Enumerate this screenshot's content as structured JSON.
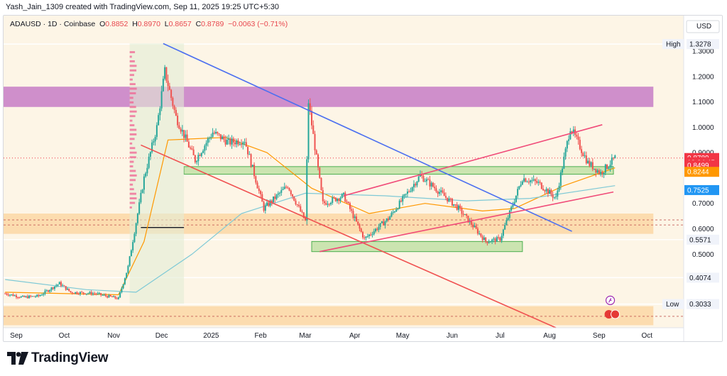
{
  "header": {
    "caption": "Yash_Jain_1309 created with TradingView.com, Sep 11, 2025 19:25 UTC+5:30"
  },
  "legend": {
    "symbol": "ADAUSD · 1D · Coinbase",
    "o_label": "O",
    "o_value": "0.8852",
    "h_label": "H",
    "h_value": "0.8970",
    "l_label": "L",
    "l_value": "0.8657",
    "c_label": "C",
    "c_value": "0.8789",
    "change": "−0.0063 (−0.71%)"
  },
  "brand": {
    "name": "TradingView"
  },
  "colors": {
    "bg": "#fdf5e6",
    "purple": "#c77dc6",
    "zone_orange": "#fbd7a4",
    "zone_green": "#b9dd9e",
    "blue_line": "#4c6ff0",
    "red_line": "#f05050",
    "pink_line": "#f04a78",
    "up": "#26a69a",
    "down": "#ef5350"
  },
  "chart_data": {
    "type": "candlestick",
    "title": "ADAUSD · 1D · Coinbase",
    "currency": "USD",
    "y_range": [
      0.21,
      1.44
    ],
    "x_range": [
      "2024-08-24",
      "2025-10-24"
    ],
    "x_ticks": [
      {
        "date": "2024-09-01",
        "label": "Sep"
      },
      {
        "date": "2024-10-01",
        "label": "Oct"
      },
      {
        "date": "2024-11-01",
        "label": "Nov"
      },
      {
        "date": "2024-12-01",
        "label": "Dec"
      },
      {
        "date": "2025-01-01",
        "label": "2025"
      },
      {
        "date": "2025-02-01",
        "label": "Feb"
      },
      {
        "date": "2025-03-01",
        "label": "Mar"
      },
      {
        "date": "2025-04-01",
        "label": "Apr"
      },
      {
        "date": "2025-05-01",
        "label": "May"
      },
      {
        "date": "2025-06-01",
        "label": "Jun"
      },
      {
        "date": "2025-07-01",
        "label": "Jul"
      },
      {
        "date": "2025-08-01",
        "label": "Aug"
      },
      {
        "date": "2025-09-01",
        "label": "Sep"
      },
      {
        "date": "2025-10-01",
        "label": "Oct"
      }
    ],
    "y_ticks": [
      "1.3000",
      "1.2000",
      "1.1000",
      "1.0000",
      "0.9000",
      "0.7000",
      "0.6000",
      "0.5000"
    ],
    "price_labels": [
      {
        "price": 0.8789,
        "label": "0.8789",
        "color": "#f23645"
      },
      {
        "price": 0.862,
        "label": "10:04:45",
        "color": "#f23645"
      },
      {
        "price": 0.8499,
        "label": "0.8499",
        "color": "#f23645"
      },
      {
        "price": 0.8244,
        "label": "0.8244",
        "color": "#ff9800"
      },
      {
        "price": 0.7525,
        "label": "0.7525",
        "color": "#2196f3"
      }
    ],
    "level_labels": [
      {
        "price": 1.3278,
        "value": "1.3278",
        "tag": "High"
      },
      {
        "price": 0.5571,
        "value": "0.5571",
        "tag": ""
      },
      {
        "price": 0.4074,
        "value": "0.4074",
        "tag": ""
      },
      {
        "price": 0.3033,
        "value": "0.3033",
        "tag": "Low"
      }
    ],
    "zones": [
      {
        "name": "resistance-zone",
        "from": "2024-08-24",
        "to": "2025-10-05",
        "low": 1.08,
        "high": 1.16,
        "color": "#c77dc6"
      },
      {
        "name": "support-zone-upper",
        "from": "2024-08-24",
        "to": "2025-10-05",
        "low": 0.58,
        "high": 0.66,
        "color": "#fbd7a4"
      },
      {
        "name": "support-zone-lower",
        "from": "2024-08-24",
        "to": "2025-10-05",
        "low": 0.22,
        "high": 0.295,
        "color": "#fbd7a4"
      },
      {
        "name": "demand-box-neckline",
        "from": "2024-12-15",
        "to": "2025-09-10",
        "low": 0.815,
        "high": 0.845,
        "color": "#b9dd9e"
      },
      {
        "name": "demand-box-bottom",
        "from": "2025-03-05",
        "to": "2025-07-15",
        "low": 0.51,
        "high": 0.55,
        "color": "#b9dd9e"
      }
    ],
    "trendlines": [
      {
        "name": "blue-downtrend-line",
        "p1": [
          "2024-12-02",
          1.33
        ],
        "p2": [
          "2025-08-15",
          0.59
        ],
        "color": "#4c6ff0"
      },
      {
        "name": "red-descending-support",
        "p1": [
          "2024-11-18",
          0.93
        ],
        "p2": [
          "2025-08-05",
          0.21
        ],
        "color": "#f05050"
      },
      {
        "name": "channel-upper-line",
        "p1": [
          "2025-03-25",
          0.73
        ],
        "p2": [
          "2025-09-03",
          1.01
        ],
        "color": "#f04a78"
      },
      {
        "name": "channel-lower-line",
        "p1": [
          "2025-03-10",
          0.51
        ],
        "p2": [
          "2025-09-10",
          0.745
        ],
        "color": "#f04a78"
      }
    ],
    "price_path": [
      [
        "2024-08-25",
        0.345
      ],
      [
        "2024-09-05",
        0.33
      ],
      [
        "2024-09-15",
        0.335
      ],
      [
        "2024-09-28",
        0.385
      ],
      [
        "2024-10-05",
        0.35
      ],
      [
        "2024-10-20",
        0.345
      ],
      [
        "2024-11-04",
        0.325
      ],
      [
        "2024-11-10",
        0.45
      ],
      [
        "2024-11-20",
        0.8
      ],
      [
        "2024-11-28",
        1.0
      ],
      [
        "2024-12-03",
        1.22
      ],
      [
        "2024-12-10",
        1.04
      ],
      [
        "2024-12-22",
        0.87
      ],
      [
        "2025-01-02",
        0.98
      ],
      [
        "2025-01-12",
        0.94
      ],
      [
        "2025-01-22",
        0.95
      ],
      [
        "2025-02-03",
        0.68
      ],
      [
        "2025-02-18",
        0.77
      ],
      [
        "2025-03-01",
        0.63
      ],
      [
        "2025-03-03",
        1.1
      ],
      [
        "2025-03-12",
        0.7
      ],
      [
        "2025-03-25",
        0.73
      ],
      [
        "2025-04-07",
        0.56
      ],
      [
        "2025-04-22",
        0.64
      ],
      [
        "2025-05-12",
        0.81
      ],
      [
        "2025-05-25",
        0.74
      ],
      [
        "2025-06-05",
        0.68
      ],
      [
        "2025-06-22",
        0.55
      ],
      [
        "2025-07-01",
        0.56
      ],
      [
        "2025-07-15",
        0.8
      ],
      [
        "2025-07-25",
        0.78
      ],
      [
        "2025-08-05",
        0.72
      ],
      [
        "2025-08-14",
        1.0
      ],
      [
        "2025-08-25",
        0.86
      ],
      [
        "2025-09-02",
        0.82
      ],
      [
        "2025-09-11",
        0.879
      ]
    ],
    "series": [
      {
        "name": "fast-ma",
        "color": "#ff9800",
        "path": [
          [
            "2024-08-25",
            0.35
          ],
          [
            "2024-11-04",
            0.34
          ],
          [
            "2024-11-20",
            0.55
          ],
          [
            "2024-12-05",
            0.95
          ],
          [
            "2025-01-10",
            0.96
          ],
          [
            "2025-02-05",
            0.9
          ],
          [
            "2025-03-05",
            0.76
          ],
          [
            "2025-04-10",
            0.66
          ],
          [
            "2025-05-15",
            0.7
          ],
          [
            "2025-06-20",
            0.67
          ],
          [
            "2025-07-10",
            0.68
          ],
          [
            "2025-08-10",
            0.77
          ],
          [
            "2025-09-11",
            0.84
          ]
        ]
      },
      {
        "name": "slow-ma",
        "color": "#7ec9d6",
        "path": [
          [
            "2024-08-25",
            0.4
          ],
          [
            "2024-10-15",
            0.36
          ],
          [
            "2024-11-15",
            0.35
          ],
          [
            "2024-12-20",
            0.5
          ],
          [
            "2025-01-20",
            0.66
          ],
          [
            "2025-03-01",
            0.74
          ],
          [
            "2025-04-20",
            0.73
          ],
          [
            "2025-06-10",
            0.71
          ],
          [
            "2025-07-20",
            0.72
          ],
          [
            "2025-09-11",
            0.77
          ]
        ]
      }
    ]
  }
}
